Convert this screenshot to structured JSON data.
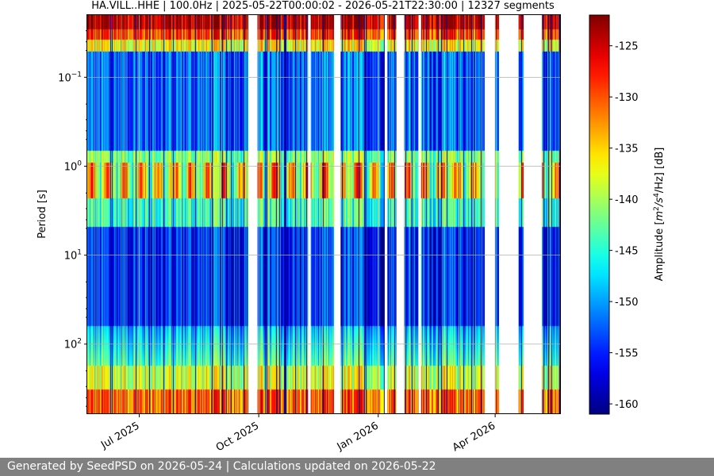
{
  "chart_data": {
    "type": "heatmap",
    "title": "HA.VILL..HHE | 100.0Hz | 2025-05-22T00:00:02 - 2026-05-21T22:30:00 | 12327 segments",
    "ylabel": "Period [s]",
    "colorbar_label": "Amplitude [m²/s⁴/Hz] [dB]",
    "colorbar_label_parts": {
      "prefix": "Amplitude [",
      "m": "m",
      "e2": "2",
      "mid": "/s",
      "e4": "4",
      "suffix": "/Hz] [dB]"
    },
    "colormap": "jet",
    "xlim": [
      "2025-05-22",
      "2026-05-21"
    ],
    "xticks": [
      {
        "date": "2025-07-01",
        "label": "Jul 2025"
      },
      {
        "date": "2025-10-01",
        "label": "Oct 2025"
      },
      {
        "date": "2026-01-01",
        "label": "Jan 2026"
      },
      {
        "date": "2026-04-01",
        "label": "Apr 2026"
      }
    ],
    "yscale": "log",
    "y_inverted": true,
    "ylim": [
      0.02,
      600
    ],
    "yticks": [
      {
        "value": 0.1,
        "base": "10",
        "exp": "−1"
      },
      {
        "value": 1,
        "base": "10",
        "exp": "0"
      },
      {
        "value": 10,
        "base": "10",
        "exp": "1"
      },
      {
        "value": 100,
        "base": "10",
        "exp": "2"
      }
    ],
    "grid": true,
    "clim": [
      -161,
      -122
    ],
    "colorbar_ticks": [
      "-125",
      "-130",
      "-135",
      "-140",
      "-145",
      "-150",
      "-155",
      "-160"
    ],
    "colorbar_tick_values": [
      -125,
      -130,
      -135,
      -140,
      -145,
      -150,
      -155,
      -160
    ],
    "data_gaps": [
      [
        "2025-09-23",
        "2025-09-30"
      ],
      [
        "2025-11-08",
        "2025-11-10"
      ],
      [
        "2025-11-28",
        "2025-12-03"
      ],
      [
        "2026-01-06",
        "2026-01-08"
      ],
      [
        "2026-01-15",
        "2026-01-21"
      ],
      [
        "2026-02-01",
        "2026-02-03"
      ],
      [
        "2026-03-24",
        "2026-04-01"
      ],
      [
        "2026-04-04",
        "2026-04-19"
      ],
      [
        "2026-04-23",
        "2026-05-07"
      ]
    ]
  },
  "footer": {
    "text": "Generated by SeedPSD on 2026-05-24 | Calculations updated on 2026-05-22"
  }
}
